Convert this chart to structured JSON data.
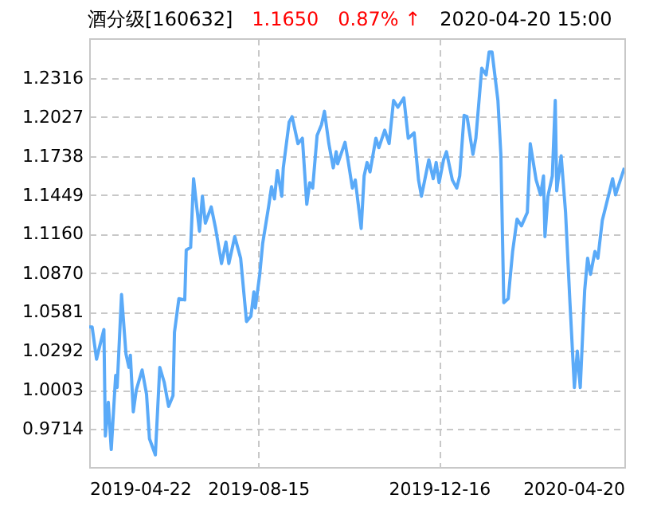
{
  "chart_data": {
    "type": "line",
    "title": "酒分级[160632]",
    "annotations": [
      "1.1650",
      "0.87% ↑",
      "2020-04-20 15:00"
    ],
    "x": [
      "2019-04-22",
      "2019-04-24",
      "2019-04-27",
      "2019-04-29",
      "2019-05-02",
      "2019-05-03",
      "2019-05-05",
      "2019-05-07",
      "2019-05-10",
      "2019-05-11",
      "2019-05-14",
      "2019-05-17",
      "2019-05-19",
      "2019-05-20",
      "2019-05-22",
      "2019-05-24",
      "2019-05-28",
      "2019-05-31",
      "2019-06-02",
      "2019-06-06",
      "2019-06-09",
      "2019-06-12",
      "2019-06-15",
      "2019-06-18",
      "2019-06-19",
      "2019-06-22",
      "2019-06-26",
      "2019-06-27",
      "2019-06-30",
      "2019-07-02",
      "2019-07-06",
      "2019-07-08",
      "2019-07-10",
      "2019-07-14",
      "2019-07-17",
      "2019-07-21",
      "2019-07-24",
      "2019-07-26",
      "2019-07-30",
      "2019-08-03",
      "2019-08-07",
      "2019-08-10",
      "2019-08-12",
      "2019-08-13",
      "2019-08-16",
      "2019-08-18",
      "2019-08-22",
      "2019-08-24",
      "2019-08-26",
      "2019-08-28",
      "2019-08-31",
      "2019-09-01",
      "2019-09-05",
      "2019-09-07",
      "2019-09-11",
      "2019-09-14",
      "2019-09-17",
      "2019-09-19",
      "2019-09-21",
      "2019-09-24",
      "2019-09-27",
      "2019-09-29",
      "2019-10-02",
      "2019-10-05",
      "2019-10-07",
      "2019-10-08",
      "2019-10-13",
      "2019-10-15",
      "2019-10-18",
      "2019-10-20",
      "2019-10-24",
      "2019-10-26",
      "2019-10-28",
      "2019-10-30",
      "2019-11-03",
      "2019-11-05",
      "2019-11-09",
      "2019-11-12",
      "2019-11-15",
      "2019-11-18",
      "2019-11-22",
      "2019-11-25",
      "2019-11-29",
      "2019-12-02",
      "2019-12-04",
      "2019-12-09",
      "2019-12-12",
      "2019-12-14",
      "2019-12-16",
      "2019-12-19",
      "2019-12-21",
      "2019-12-25",
      "2019-12-28",
      "2019-12-30",
      "2020-01-02",
      "2020-01-04",
      "2020-01-08",
      "2020-01-10",
      "2020-01-14",
      "2020-01-17",
      "2020-01-19",
      "2020-01-21",
      "2020-01-25",
      "2020-01-27",
      "2020-01-29",
      "2020-02-01",
      "2020-02-04",
      "2020-02-07",
      "2020-02-10",
      "2020-02-14",
      "2020-02-16",
      "2020-02-20",
      "2020-02-23",
      "2020-02-25",
      "2020-02-26",
      "2020-02-28",
      "2020-03-02",
      "2020-03-04",
      "2020-03-05",
      "2020-03-08",
      "2020-03-11",
      "2020-03-14",
      "2020-03-17",
      "2020-03-19",
      "2020-03-21",
      "2020-03-24",
      "2020-03-26",
      "2020-03-28",
      "2020-03-31",
      "2020-04-02",
      "2020-04-05",
      "2020-04-10",
      "2020-04-12",
      "2020-04-14",
      "2020-04-20"
    ],
    "series": [
      {
        "color": "#5aaaf8",
        "values": [
          1.047,
          1.047,
          1.023,
          1.032,
          1.045,
          0.966,
          0.991,
          0.956,
          1.011,
          1.002,
          1.071,
          1.027,
          1.017,
          1.026,
          0.984,
          1.0,
          1.015,
          0.997,
          0.964,
          0.952,
          1.017,
          1.006,
          0.988,
          0.996,
          1.043,
          1.068,
          1.067,
          1.104,
          1.106,
          1.157,
          1.118,
          1.144,
          1.124,
          1.136,
          1.12,
          1.094,
          1.11,
          1.094,
          1.114,
          1.098,
          1.051,
          1.055,
          1.073,
          1.061,
          1.086,
          1.109,
          1.136,
          1.151,
          1.142,
          1.163,
          1.144,
          1.165,
          1.199,
          1.203,
          1.183,
          1.187,
          1.138,
          1.154,
          1.15,
          1.189,
          1.197,
          1.207,
          1.183,
          1.165,
          1.177,
          1.168,
          1.184,
          1.171,
          1.15,
          1.156,
          1.12,
          1.159,
          1.169,
          1.162,
          1.187,
          1.18,
          1.193,
          1.183,
          1.215,
          1.21,
          1.217,
          1.187,
          1.191,
          1.156,
          1.144,
          1.171,
          1.157,
          1.169,
          1.154,
          1.171,
          1.177,
          1.156,
          1.15,
          1.159,
          1.204,
          1.203,
          1.175,
          1.187,
          1.239,
          1.234,
          1.251,
          1.251,
          1.215,
          1.175,
          1.065,
          1.068,
          1.103,
          1.127,
          1.122,
          1.132,
          1.183,
          1.156,
          1.145,
          1.159,
          1.114,
          1.144,
          1.159,
          1.215,
          1.148,
          1.174,
          1.132,
          1.065,
          1.002,
          1.029,
          1.002,
          1.074,
          1.098,
          1.086,
          1.103,
          1.098,
          1.126,
          1.148,
          1.157,
          1.145,
          1.165
        ]
      }
    ],
    "xlim": [
      "2019-04-22",
      "2020-04-20"
    ],
    "xticks": [
      "2019-04-22",
      "2019-08-15",
      "2019-12-16",
      "2020-04-20"
    ],
    "ylim": [
      0.943,
      1.2612
    ],
    "yticks": [
      0.9714,
      1.0003,
      1.0292,
      1.0581,
      {
        "value": 1.087,
        "label": "1.0870"
      },
      {
        "value": 1.116,
        "label": "1.1160"
      },
      1.1449,
      1.1738,
      1.2027,
      1.2316
    ],
    "grid": true,
    "line_style": "solid"
  }
}
